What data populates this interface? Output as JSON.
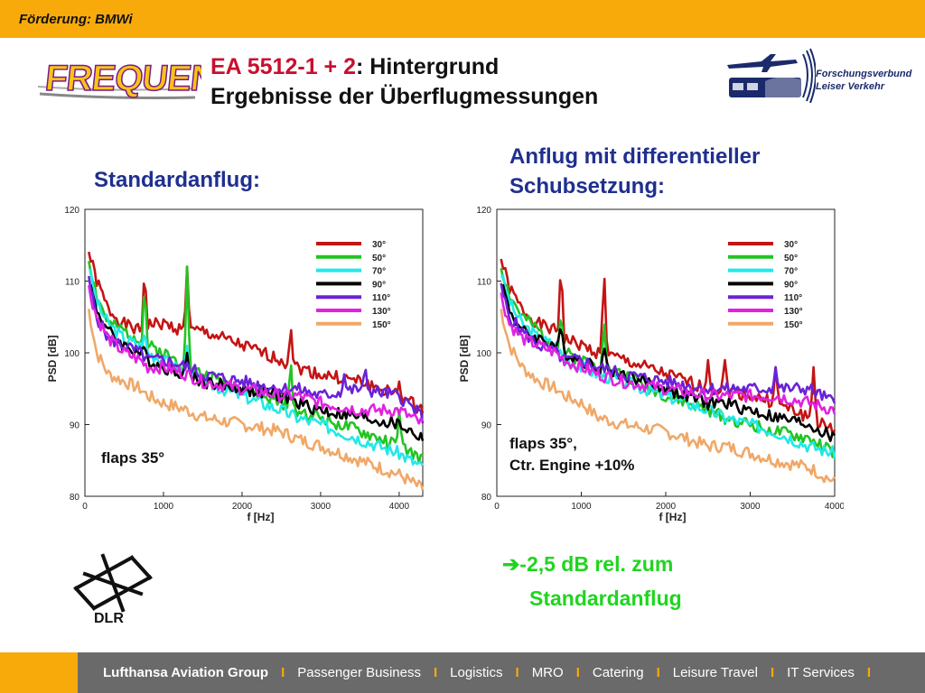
{
  "header": {
    "funding": "Förderung: BMWi"
  },
  "brand": {
    "frequenz_logo": "FREQUENZ",
    "partner_line1": "Forschungsverbund",
    "partner_line2": "Leiser Verkehr",
    "dlr_text": "DLR"
  },
  "title": {
    "line1_prefix": "EA 5512-1 + 2",
    "line1_suffix": ": Hintergrund",
    "line2": "Ergebnisse der Überflugmessungen"
  },
  "left_heading": "Standardanflug:",
  "right_heading_line1": "Anflug mit differentieller",
  "right_heading_line2": "Schubsetzung:",
  "result_line1": "-2,5 dB rel. zum",
  "result_line2": "Standardanflug",
  "colors": {
    "accent": "#f8aa0b",
    "heading": "#1f2f8f",
    "result": "#1fd51f",
    "title_red": "#c8102e",
    "footer": "#6a6a6a"
  },
  "footer": {
    "items": [
      "Lufthansa Aviation Group",
      "Passenger Business",
      "Logistics",
      "MRO",
      "Catering",
      "Leisure Travel",
      "IT Services"
    ],
    "separator": "I"
  },
  "chart_data": [
    {
      "type": "line",
      "xlabel": "f [Hz]",
      "ylabel": "PSD [dB]",
      "xlim": [
        0,
        4300
      ],
      "ylim": [
        80,
        120
      ],
      "xticks": [
        "0",
        "1000",
        "2000",
        "3000",
        "4000"
      ],
      "yticks": [
        "80",
        "90",
        "100",
        "110",
        "120"
      ],
      "legend_position": "top-right",
      "annotation": {
        "line1": "flaps 35°",
        "line2": ""
      },
      "x": [
        50,
        150,
        300,
        500,
        700,
        800,
        1000,
        1300,
        1500,
        2000,
        2500,
        2700,
        3000,
        3500,
        4000,
        4300
      ],
      "series": [
        {
          "name": "30°",
          "color": "#c41414",
          "values": [
            114,
            110,
            106,
            104,
            103,
            104,
            104,
            103,
            103,
            101,
            99,
            98,
            97,
            96,
            94,
            92
          ],
          "peaks": [
            [
              760,
              112
            ],
            [
              1300,
              112
            ],
            [
              2620,
              104
            ],
            [
              4000,
              96
            ]
          ]
        },
        {
          "name": "50°",
          "color": "#22c422",
          "values": [
            113,
            108,
            104,
            103,
            102,
            101,
            100,
            98,
            97,
            95,
            93,
            92,
            91,
            89,
            87,
            85
          ],
          "peaks": [
            [
              760,
              110
            ],
            [
              1300,
              112
            ],
            [
              2620,
              99
            ],
            [
              4000,
              92
            ]
          ]
        },
        {
          "name": "70°",
          "color": "#22e8e8",
          "values": [
            112,
            107,
            104,
            102,
            101,
            100,
            99,
            97,
            96,
            94,
            92,
            91,
            90,
            88,
            86,
            84
          ],
          "peaks": [
            [
              760,
              103
            ],
            [
              1300,
              101
            ]
          ]
        },
        {
          "name": "90°",
          "color": "#000000",
          "values": [
            110,
            106,
            103,
            101,
            100,
            99,
            98,
            97,
            96,
            95,
            94,
            93,
            92,
            91,
            90,
            88
          ],
          "peaks": [
            [
              760,
              101
            ],
            [
              1300,
              100
            ]
          ]
        },
        {
          "name": "110°",
          "color": "#6a22d8",
          "values": [
            110,
            105,
            102,
            101,
            100,
            99,
            99,
            98,
            97,
            96,
            95,
            95,
            94,
            95,
            94,
            91
          ],
          "peaks": [
            [
              3300,
              97
            ],
            [
              3570,
              98
            ]
          ]
        },
        {
          "name": "130°",
          "color": "#e022e0",
          "values": [
            109,
            105,
            102,
            100,
            99,
            98,
            98,
            97,
            96,
            95,
            94,
            94,
            93,
            92,
            92,
            90
          ],
          "peaks": []
        },
        {
          "name": "150°",
          "color": "#f0a868",
          "values": [
            106,
            100,
            97,
            96,
            95,
            94,
            93,
            92,
            91,
            90,
            89,
            88,
            87,
            85,
            83,
            81
          ],
          "peaks": []
        }
      ]
    },
    {
      "type": "line",
      "xlabel": "f [Hz]",
      "ylabel": "PSD [dB]",
      "xlim": [
        0,
        4000
      ],
      "ylim": [
        80,
        120
      ],
      "xticks": [
        "0",
        "1000",
        "2000",
        "3000",
        "4000"
      ],
      "yticks": [
        "80",
        "90",
        "100",
        "110",
        "120"
      ],
      "legend_position": "top-right",
      "annotation": {
        "line1": "flaps 35°,",
        "line2": "Ctr. Engine +10%"
      },
      "x": [
        50,
        150,
        300,
        500,
        700,
        800,
        1000,
        1200,
        1500,
        2000,
        2500,
        2700,
        3000,
        3300,
        3700,
        4000
      ],
      "series": [
        {
          "name": "30°",
          "color": "#c41414",
          "values": [
            113,
            109,
            106,
            104,
            103,
            102,
            101,
            100,
            99,
            97,
            95,
            95,
            94,
            93,
            91,
            89
          ],
          "peaks": [
            [
              760,
              113
            ],
            [
              1270,
              112
            ],
            [
              2500,
              99
            ],
            [
              2700,
              99
            ],
            [
              3300,
              98
            ],
            [
              3750,
              98
            ]
          ]
        },
        {
          "name": "50°",
          "color": "#22c422",
          "values": [
            112,
            108,
            105,
            103,
            101,
            100,
            99,
            98,
            97,
            94,
            92,
            91,
            90,
            89,
            88,
            86
          ],
          "peaks": [
            [
              760,
              106
            ],
            [
              1270,
              105
            ]
          ]
        },
        {
          "name": "70°",
          "color": "#22e8e8",
          "values": [
            111,
            107,
            104,
            102,
            101,
            99,
            98,
            97,
            96,
            94,
            92,
            91,
            90,
            89,
            87,
            86
          ],
          "peaks": []
        },
        {
          "name": "90°",
          "color": "#000000",
          "values": [
            110,
            106,
            103,
            102,
            101,
            100,
            99,
            98,
            97,
            95,
            93,
            93,
            92,
            91,
            90,
            88
          ],
          "peaks": [
            [
              760,
              104
            ],
            [
              1270,
              101
            ]
          ]
        },
        {
          "name": "110°",
          "color": "#6a22d8",
          "values": [
            109,
            105,
            103,
            101,
            100,
            99,
            99,
            98,
            97,
            96,
            95,
            95,
            95,
            95,
            95,
            93
          ],
          "peaks": [
            [
              3300,
              98
            ]
          ]
        },
        {
          "name": "130°",
          "color": "#e022e0",
          "values": [
            108,
            104,
            102,
            101,
            100,
            99,
            98,
            97,
            96,
            95,
            94,
            94,
            94,
            94,
            93,
            92
          ],
          "peaks": []
        },
        {
          "name": "150°",
          "color": "#f0a868",
          "values": [
            106,
            101,
            98,
            96,
            95,
            94,
            93,
            91,
            90,
            89,
            87,
            87,
            86,
            85,
            84,
            82
          ],
          "peaks": []
        }
      ]
    }
  ]
}
